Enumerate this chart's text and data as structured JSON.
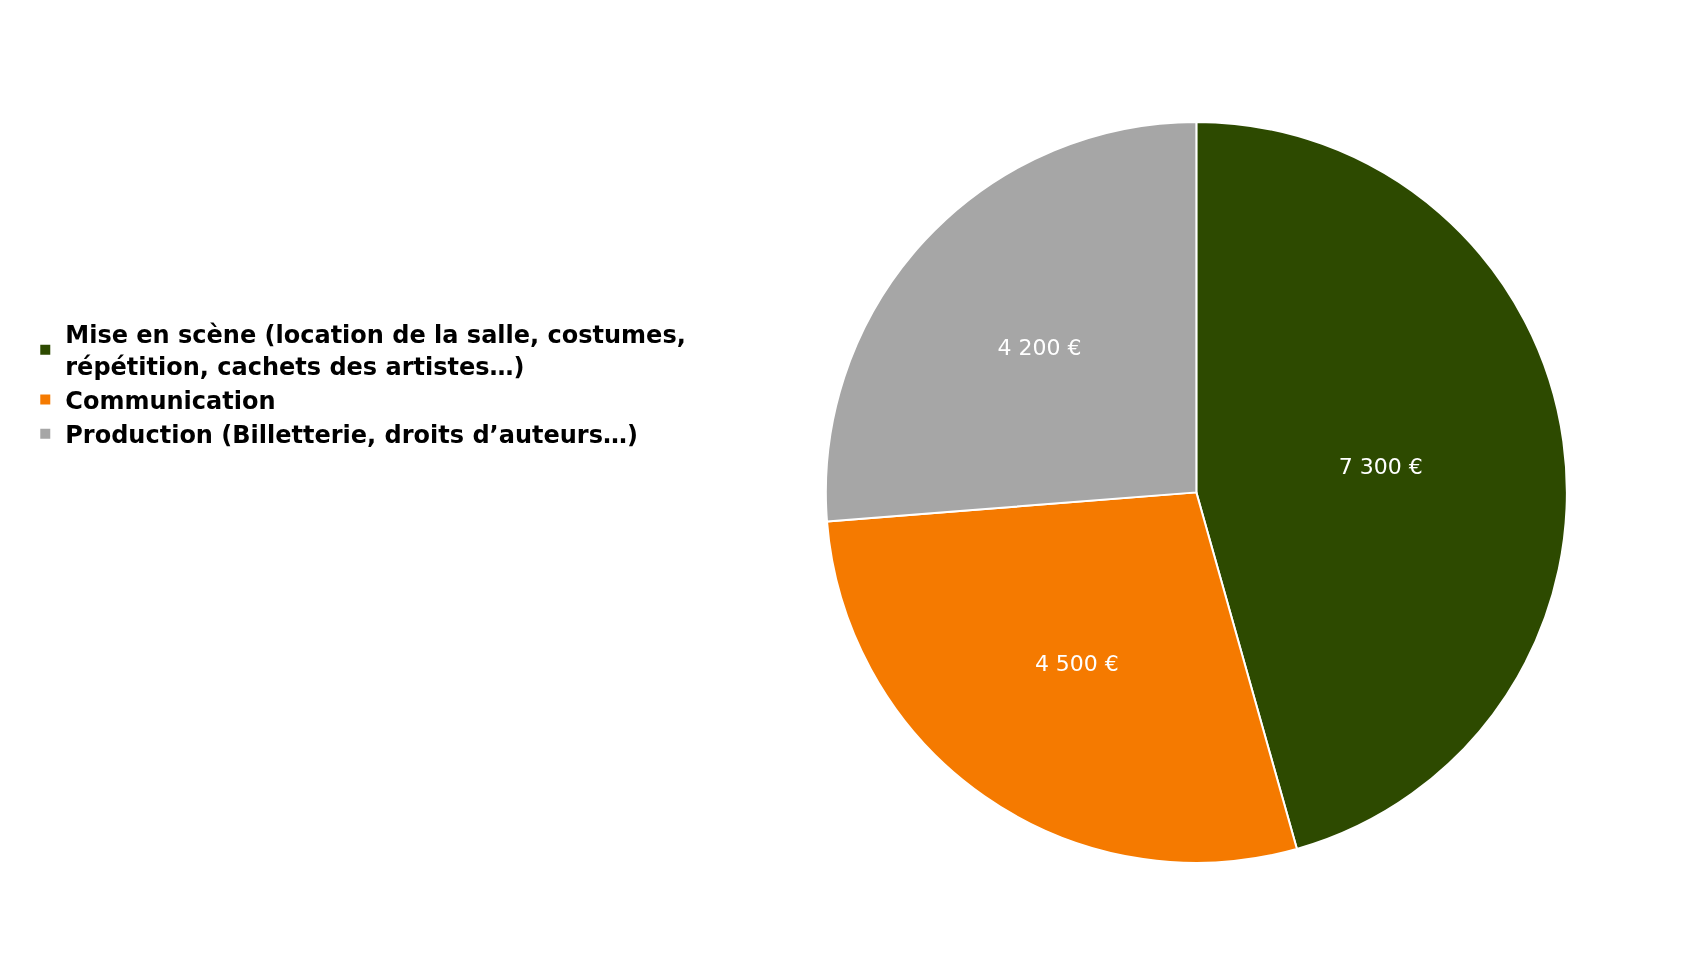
{
  "chart_data": {
    "type": "pie",
    "categories": [
      "Mise en scène (location de la salle, costumes, répétition, cachets des artistes…)",
      "Communication",
      "Production (Billetterie, droits d’auteurs…)"
    ],
    "values": [
      7300,
      4500,
      4200
    ],
    "value_labels": [
      "7 300 €",
      "4 500 €",
      "4 200 €"
    ],
    "colors": [
      "#2d4a00",
      "#f57a00",
      "#a6a6a6"
    ],
    "legend": "left"
  }
}
